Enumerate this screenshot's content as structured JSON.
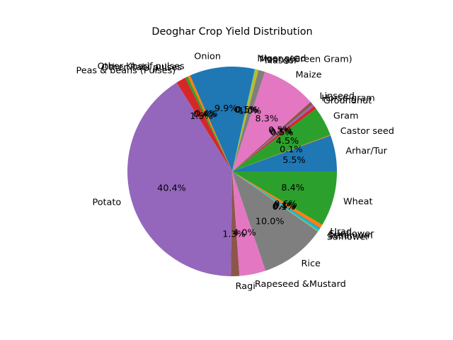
{
  "chart_data": {
    "type": "pie",
    "title": "Deoghar Crop Yield Distribution",
    "start_angle_deg": 0,
    "direction": "counterclockwise",
    "colors": [
      "#1f77b4",
      "#ff7f0e",
      "#2ca02c",
      "#d62728",
      "#9467bd",
      "#8c564b",
      "#e377c2",
      "#7f7f7f",
      "#bcbd22",
      "#17becf"
    ],
    "slices": [
      {
        "label": "Arhar/Tur",
        "value": 5.5,
        "pct_label": "5.5%"
      },
      {
        "label": "Castor seed",
        "value": 0.1,
        "pct_label": "0.1%"
      },
      {
        "label": "Gram",
        "value": 4.5,
        "pct_label": "4.5%"
      },
      {
        "label": "Groundnut",
        "value": 0.5,
        "pct_label": "0.5%"
      },
      {
        "label": "Horse-gram",
        "value": 0.3,
        "pct_label": "0.3%"
      },
      {
        "label": "Linseed",
        "value": 0.5,
        "pct_label": "0.5%"
      },
      {
        "label": "Maize",
        "value": 8.3,
        "pct_label": "8.3%"
      },
      {
        "label": "Masoor",
        "value": 1.0,
        "pct_label": "1.0%"
      },
      {
        "label": "Moong(Green Gram)",
        "value": 0.5,
        "pct_label": "0.5%"
      },
      {
        "label": "Niger seed",
        "value": 0.1,
        "pct_label": "0.1%"
      },
      {
        "label": "Onion",
        "value": 9.9,
        "pct_label": "9.9%"
      },
      {
        "label": "Other Kharif pulses",
        "value": 0.4,
        "pct_label": "0.4%"
      },
      {
        "label": "Other Rabi pulses",
        "value": 0.4,
        "pct_label": "0.4%"
      },
      {
        "label": "Peas & beans (Pulses)",
        "value": 1.5,
        "pct_label": "1.5%"
      },
      {
        "label": "Potato",
        "value": 40.4,
        "pct_label": "40.4%"
      },
      {
        "label": "Ragi",
        "value": 1.3,
        "pct_label": "1.3%"
      },
      {
        "label": "Rapeseed &Mustard",
        "value": 4.0,
        "pct_label": "4.0%"
      },
      {
        "label": "Rice",
        "value": 10.0,
        "pct_label": "10.0%"
      },
      {
        "label": "Safflower",
        "value": 0.1,
        "pct_label": "0.1%"
      },
      {
        "label": "Sesamum",
        "value": 0.4,
        "pct_label": "0.4%"
      },
      {
        "label": "Sunflower",
        "value": 0.1,
        "pct_label": "0.1%"
      },
      {
        "label": "Urad",
        "value": 0.6,
        "pct_label": "0.6%"
      },
      {
        "label": "Wheat",
        "value": 8.4,
        "pct_label": "8.4%"
      }
    ]
  }
}
